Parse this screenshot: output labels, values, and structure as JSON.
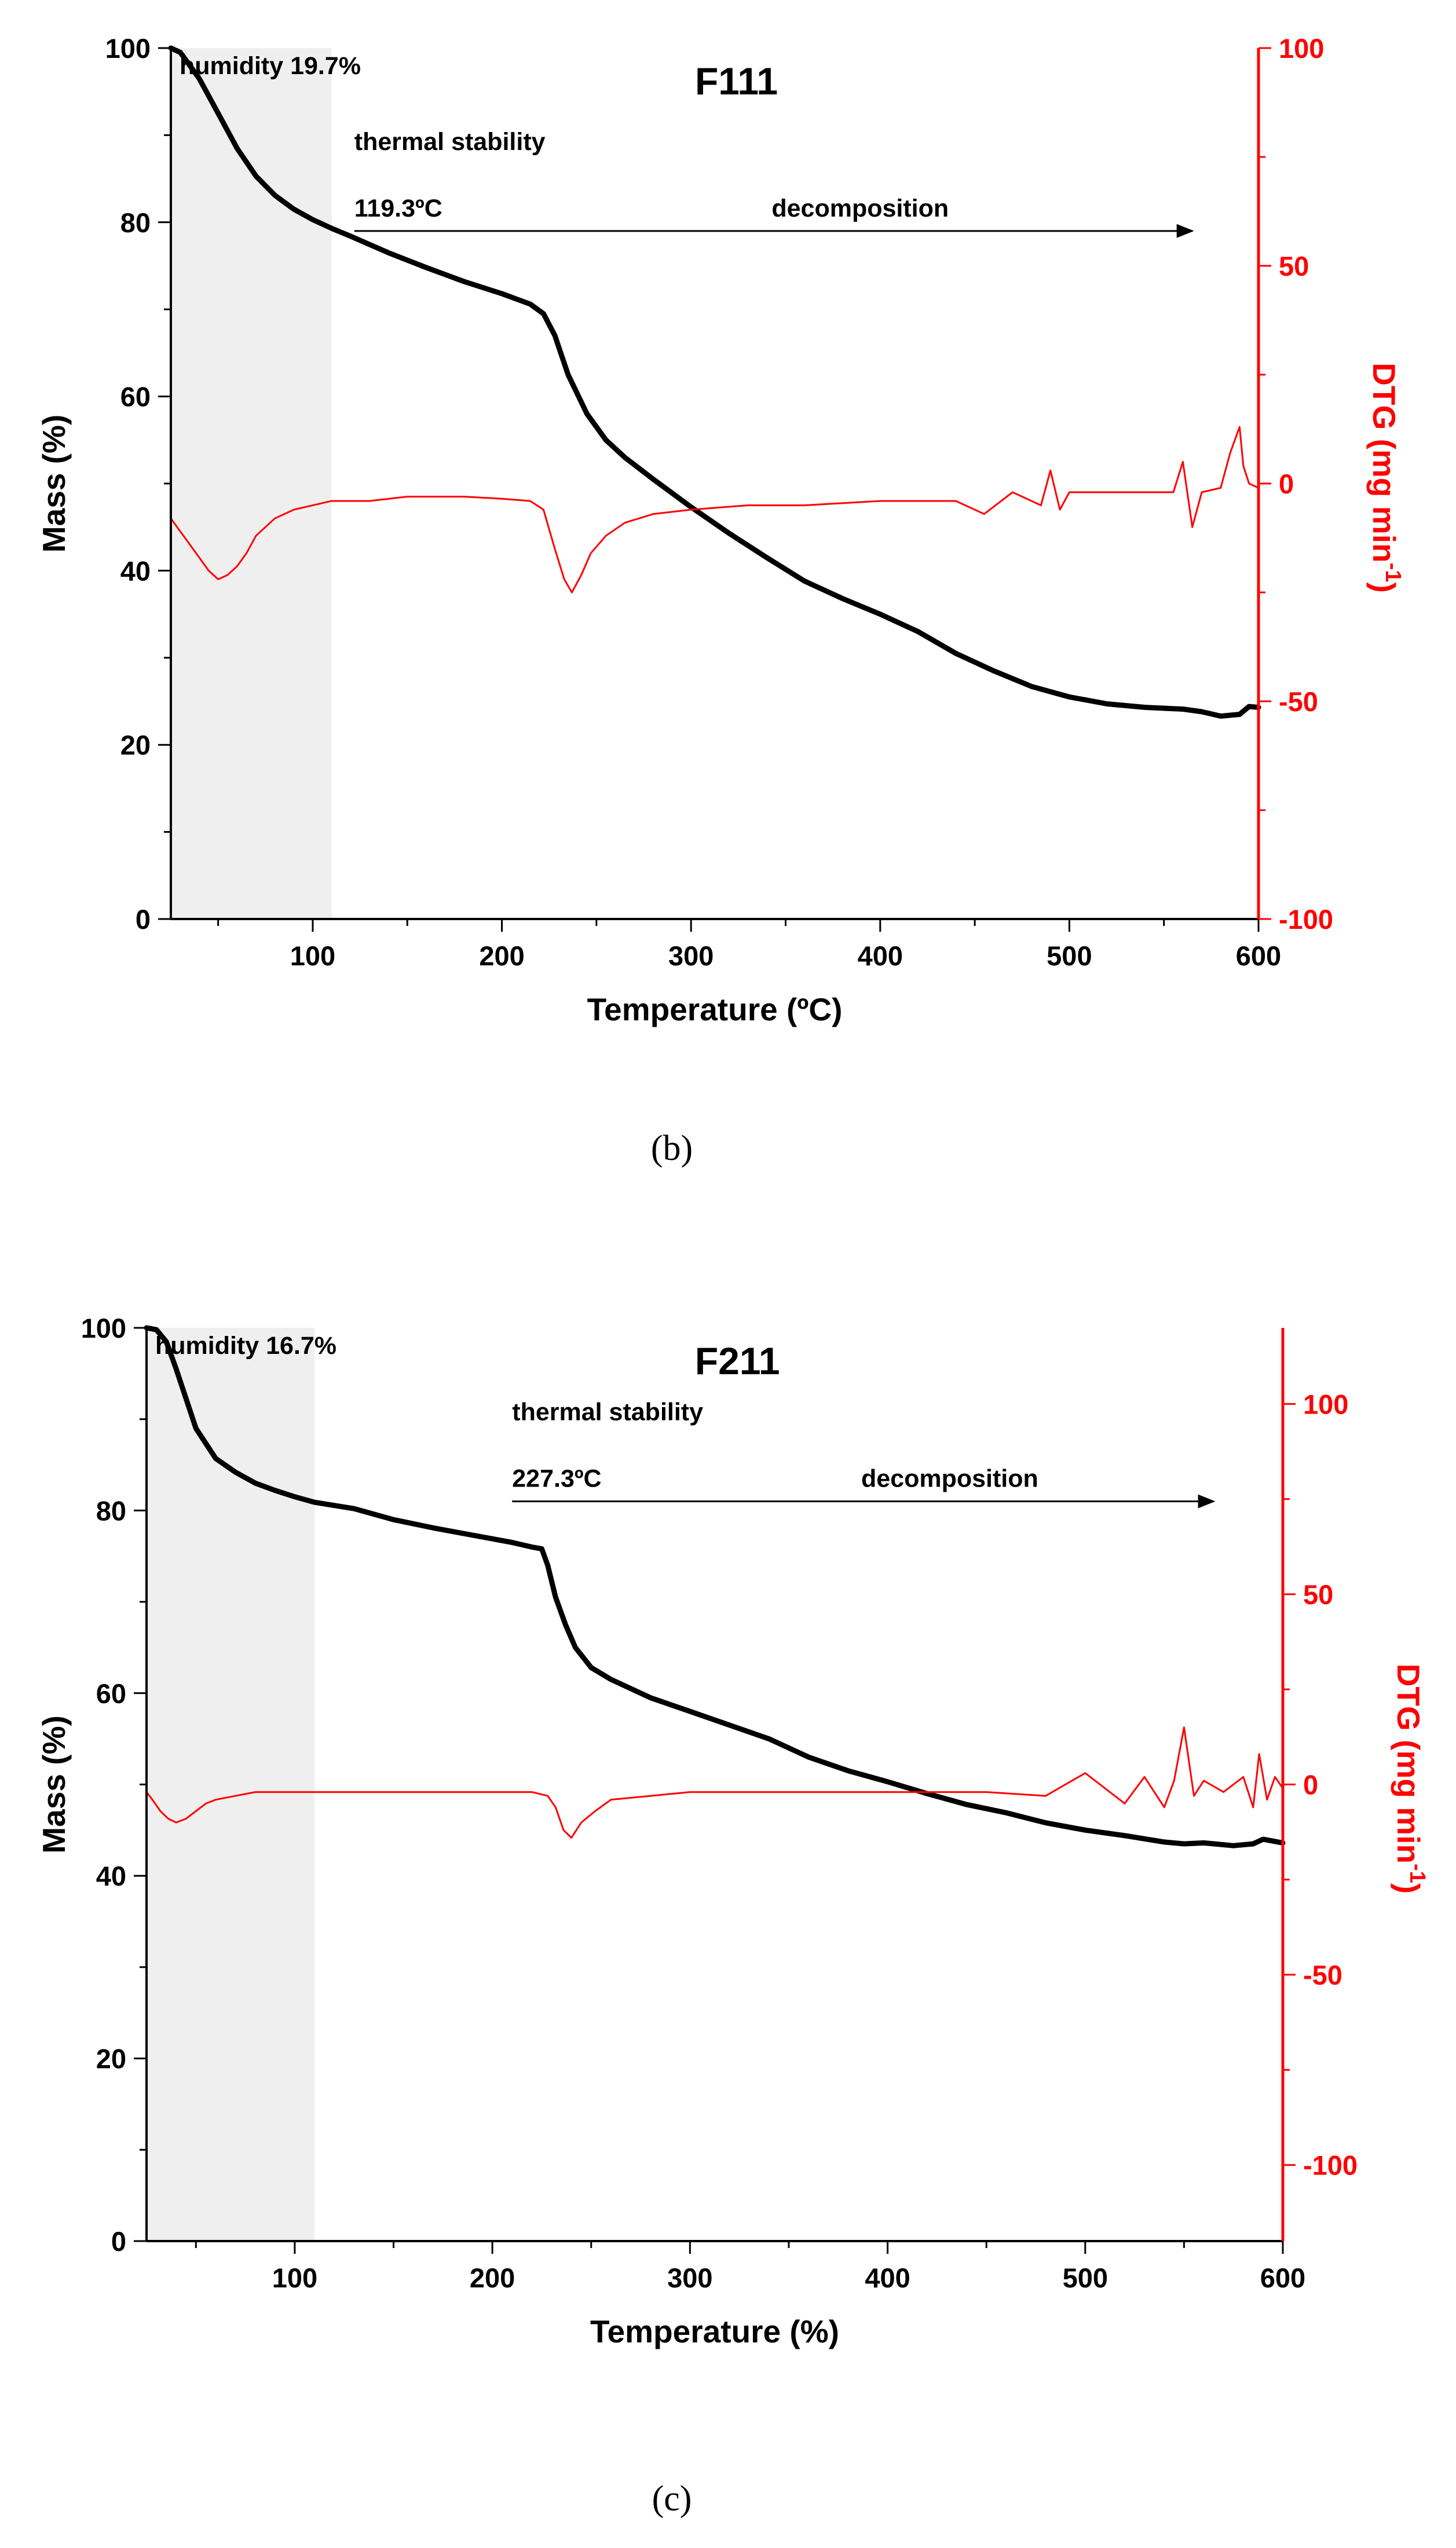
{
  "chart_data": [
    {
      "type": "line",
      "panel_label": "(b)",
      "title": "F111",
      "xlabel": "Temperature (ºC)",
      "ylabel": "Mass (%)",
      "y2label": "DTG (mg min",
      "y2label_sup": "-1",
      "y2label_close": ")",
      "xlim": [
        25,
        600
      ],
      "ylim": [
        0,
        100
      ],
      "y2lim": [
        -100,
        100
      ],
      "xticks": [
        100,
        200,
        300,
        400,
        500,
        600
      ],
      "yticks": [
        0,
        20,
        40,
        60,
        80,
        100
      ],
      "y2ticks": [
        -100,
        -50,
        0,
        50,
        100
      ],
      "shaded_region": {
        "x0": 25,
        "x1": 110,
        "label": "humidity 19.7%"
      },
      "annotations": {
        "stability_label": "thermal stability",
        "stability_temp": "119.3ºC",
        "decomposition_label": "decomposition",
        "arrow_from_x": 122,
        "arrow_to_x": 565
      },
      "series": [
        {
          "name": "Mass",
          "axis": "left",
          "color": "#000000",
          "x": [
            25,
            30,
            40,
            50,
            60,
            70,
            80,
            90,
            100,
            110,
            120,
            140,
            160,
            180,
            200,
            215,
            222,
            228,
            235,
            245,
            255,
            265,
            280,
            300,
            320,
            340,
            360,
            380,
            400,
            420,
            440,
            460,
            480,
            500,
            520,
            540,
            560,
            570,
            580,
            590,
            595,
            600
          ],
          "values": [
            100,
            99.5,
            96.5,
            92.5,
            88.5,
            85.3,
            83.1,
            81.5,
            80.3,
            79.3,
            78.4,
            76.5,
            74.8,
            73.2,
            71.8,
            70.6,
            69.5,
            67.0,
            62.5,
            58.0,
            55.0,
            53.0,
            50.5,
            47.3,
            44.3,
            41.5,
            38.8,
            36.8,
            35.0,
            33.0,
            30.5,
            28.5,
            26.7,
            25.5,
            24.7,
            24.3,
            24.1,
            23.8,
            23.3,
            23.5,
            24.4,
            24.3
          ]
        },
        {
          "name": "DTG",
          "axis": "right",
          "color": "#ff0000",
          "x": [
            25,
            30,
            35,
            40,
            45,
            50,
            55,
            60,
            65,
            70,
            80,
            90,
            100,
            110,
            130,
            150,
            180,
            200,
            215,
            222,
            228,
            233,
            237,
            242,
            247,
            255,
            265,
            280,
            300,
            330,
            360,
            400,
            440,
            455,
            470,
            485,
            490,
            495,
            500,
            520,
            540,
            555,
            560,
            565,
            570,
            580,
            585,
            590,
            592,
            595,
            600
          ],
          "values": [
            -8,
            -11,
            -14,
            -17,
            -20,
            -22,
            -21,
            -19,
            -16,
            -12,
            -8,
            -6,
            -5,
            -4,
            -4,
            -3,
            -3,
            -3.5,
            -4,
            -6,
            -15,
            -22,
            -25,
            -21,
            -16,
            -12,
            -9,
            -7,
            -6,
            -5,
            -5,
            -4,
            -4,
            -7,
            -2,
            -5,
            3,
            -6,
            -2,
            -2,
            -2,
            -2,
            5,
            -10,
            -2,
            -1,
            7,
            13,
            4,
            0,
            -1
          ]
        }
      ]
    },
    {
      "type": "line",
      "panel_label": "(c)",
      "title": "F211",
      "xlabel": "Temperature (%)",
      "ylabel": "Mass (%)",
      "y2label": "DTG (mg min",
      "y2label_sup": "-1",
      "y2label_close": ")",
      "xlim": [
        25,
        600
      ],
      "ylim": [
        0,
        100
      ],
      "y2lim": [
        -120,
        120
      ],
      "xticks": [
        100,
        200,
        300,
        400,
        500,
        600
      ],
      "yticks": [
        0,
        20,
        40,
        60,
        80,
        100
      ],
      "y2ticks": [
        -100,
        -50,
        0,
        50,
        100
      ],
      "shaded_region": {
        "x0": 25,
        "x1": 110,
        "label": "humidity 16.7%"
      },
      "annotations": {
        "stability_label": "thermal stability",
        "stability_temp": "227.3ºC",
        "decomposition_label": "decomposition",
        "arrow_from_x": 210,
        "arrow_to_x": 565
      },
      "series": [
        {
          "name": "Mass",
          "axis": "left",
          "color": "#000000",
          "x": [
            25,
            30,
            35,
            40,
            50,
            60,
            70,
            80,
            90,
            100,
            110,
            130,
            150,
            170,
            190,
            210,
            220,
            225,
            228,
            232,
            237,
            242,
            250,
            260,
            280,
            300,
            320,
            340,
            360,
            380,
            400,
            420,
            440,
            460,
            480,
            500,
            520,
            540,
            550,
            560,
            575,
            585,
            590,
            600
          ],
          "values": [
            100,
            99.8,
            98.5,
            95.5,
            89.0,
            85.7,
            84.2,
            83.0,
            82.2,
            81.5,
            80.9,
            80.2,
            79.0,
            78.1,
            77.3,
            76.5,
            76.0,
            75.8,
            74.0,
            70.5,
            67.5,
            65.0,
            62.8,
            61.5,
            59.5,
            58.0,
            56.5,
            55.0,
            53.0,
            51.5,
            50.3,
            49.0,
            47.8,
            46.9,
            45.8,
            45.0,
            44.4,
            43.7,
            43.5,
            43.6,
            43.3,
            43.5,
            44.0,
            43.6
          ]
        },
        {
          "name": "DTG",
          "axis": "right",
          "color": "#ff0000",
          "x": [
            25,
            28,
            32,
            36,
            40,
            45,
            50,
            55,
            60,
            70,
            80,
            90,
            100,
            120,
            150,
            180,
            200,
            220,
            228,
            232,
            236,
            240,
            245,
            252,
            260,
            280,
            300,
            350,
            400,
            450,
            480,
            500,
            520,
            530,
            540,
            545,
            550,
            555,
            560,
            570,
            580,
            585,
            588,
            592,
            596,
            600
          ],
          "values": [
            -2,
            -4,
            -7,
            -9,
            -10,
            -9,
            -7,
            -5,
            -4,
            -3,
            -2,
            -2,
            -2,
            -2,
            -2,
            -2,
            -2,
            -2,
            -3,
            -6,
            -12,
            -14,
            -10,
            -7,
            -4,
            -3,
            -2,
            -2,
            -2,
            -2,
            -3,
            3,
            -5,
            2,
            -6,
            1,
            15,
            -3,
            1,
            -2,
            2,
            -6,
            8,
            -4,
            2,
            -1
          ]
        }
      ]
    }
  ]
}
